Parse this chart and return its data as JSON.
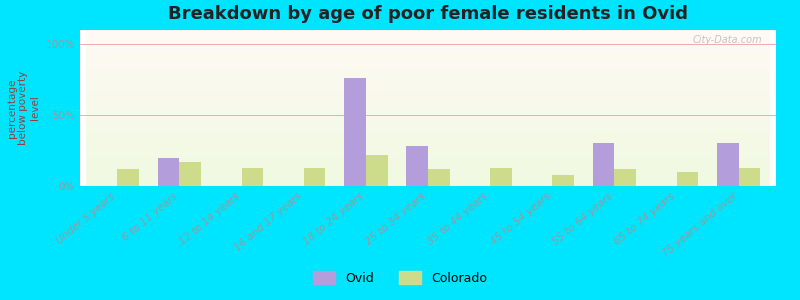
{
  "title": "Breakdown by age of poor female residents in Ovid",
  "ylabel": "percentage\nbelow poverty\nlevel",
  "background_outer": "#00e5ff",
  "categories": [
    "Under 5 years",
    "6 to 11 years",
    "12 to 14 years",
    "16 and 17 years",
    "18 to 24 years",
    "25 to 34 years",
    "35 to 44 years",
    "45 to 54 years",
    "55 to 64 years",
    "65 to 74 years",
    "75 years and over"
  ],
  "ovid_values": [
    0,
    20,
    0,
    0,
    76,
    28,
    0,
    0,
    30,
    0,
    30
  ],
  "colorado_values": [
    12,
    17,
    13,
    13,
    22,
    12,
    13,
    8,
    12,
    10,
    13
  ],
  "ovid_color": "#b39ddb",
  "colorado_color": "#cddc8a",
  "yticks": [
    0,
    50,
    100
  ],
  "ytick_labels": [
    "0%",
    "50%",
    "100%"
  ],
  "ylim": [
    0,
    110
  ],
  "bar_width": 0.35,
  "title_fontsize": 13,
  "axis_label_fontsize": 7.5,
  "tick_fontsize": 7.5,
  "legend_fontsize": 9
}
